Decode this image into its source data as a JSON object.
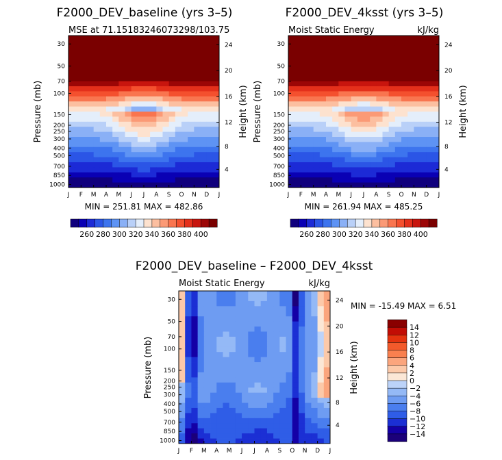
{
  "colors": {
    "abs_scale": [
      "#10007d",
      "#0a00b4",
      "#1c2ad6",
      "#2b55e6",
      "#3d74ee",
      "#5e93f4",
      "#8ab0f6",
      "#b9d0f8",
      "#e4eefb",
      "#fde2cf",
      "#fcbfa0",
      "#fb9a76",
      "#f9754f",
      "#f4502e",
      "#e4301b",
      "#c8150e",
      "#9c0606",
      "#7a0000"
    ],
    "diff_scale": [
      "#1b007a",
      "#1400a6",
      "#1b2fd4",
      "#2f5de7",
      "#4a7eee",
      "#6e9cf2",
      "#94b9f6",
      "#bcd3f9",
      "#fbe7d6",
      "#fcc9a9",
      "#fba57d",
      "#f9804f",
      "#f35a2b",
      "#e4330f",
      "#c20d05",
      "#8a0000"
    ]
  },
  "chart_data": [
    {
      "type": "heatmap",
      "title": "F2000_DEV_baseline (yrs 3–5)",
      "subtitle_left": "MSE at 71.15183246073298/103.75",
      "subtitle_right": "",
      "ylabel": "Pressure (mb)",
      "y2label": "Height (km)",
      "x_ticks": [
        "J",
        "F",
        "M",
        "A",
        "M",
        "J",
        "J",
        "A",
        "S",
        "O",
        "N",
        "D",
        "J"
      ],
      "y_ticks": [
        "30",
        "50",
        "70",
        "100",
        "150",
        "200",
        "250",
        "300",
        "400",
        "500",
        "700",
        "850",
        "1000"
      ],
      "y2_ticks": [
        "24",
        "20",
        "16",
        "12",
        "8",
        "4"
      ],
      "stats": "MIN = 251.81  MAX = 482.86",
      "min": 251.81,
      "max": 482.86,
      "dip_month": 6,
      "dip_strength": 1.0
    },
    {
      "type": "heatmap",
      "title": "F2000_DEV_4ksst (yrs 3–5)",
      "subtitle_left": "Moist Static Energy",
      "subtitle_right": "kJ/kg",
      "ylabel": "Pressure (mb)",
      "y2label": "Height (km)",
      "x_ticks": [
        "J",
        "F",
        "M",
        "A",
        "M",
        "J",
        "J",
        "A",
        "S",
        "O",
        "N",
        "D",
        "J"
      ],
      "y_ticks": [
        "30",
        "50",
        "70",
        "100",
        "150",
        "200",
        "250",
        "300",
        "400",
        "500",
        "700",
        "850",
        "1000"
      ],
      "y2_ticks": [
        "24",
        "20",
        "16",
        "12",
        "8",
        "4"
      ],
      "stats": "MIN = 261.94  MAX = 485.25",
      "min": 261.94,
      "max": 485.25,
      "dip_month": 6,
      "dip_strength": 0.85
    },
    {
      "type": "heatmap",
      "title": "F2000_DEV_baseline – F2000_DEV_4ksst",
      "subtitle_left": "Moist Static Energy",
      "subtitle_right": "kJ/kg",
      "ylabel": "Pressure (mb)",
      "y2label": "Height (km)",
      "x_ticks": [
        "J",
        "F",
        "M",
        "A",
        "M",
        "J",
        "J",
        "A",
        "S",
        "O",
        "N",
        "D",
        "J"
      ],
      "y_ticks": [
        "30",
        "50",
        "70",
        "100",
        "150",
        "200",
        "250",
        "300",
        "400",
        "500",
        "700",
        "850",
        "1000"
      ],
      "y2_ticks": [
        "24",
        "20",
        "16",
        "12",
        "8",
        "4"
      ],
      "stats": "MIN = -15.49  MAX =    6.51",
      "min": -15.49,
      "max": 6.51
    }
  ],
  "colorbar_abs": {
    "labels": [
      "260",
      "280",
      "300",
      "320",
      "340",
      "360",
      "380",
      "400"
    ]
  },
  "colorbar_diff": {
    "labels": [
      "14",
      "12",
      "10",
      "8",
      "6",
      "4",
      "2",
      "0",
      "−2",
      "−4",
      "−6",
      "−8",
      "−10",
      "−12",
      "−14"
    ]
  }
}
